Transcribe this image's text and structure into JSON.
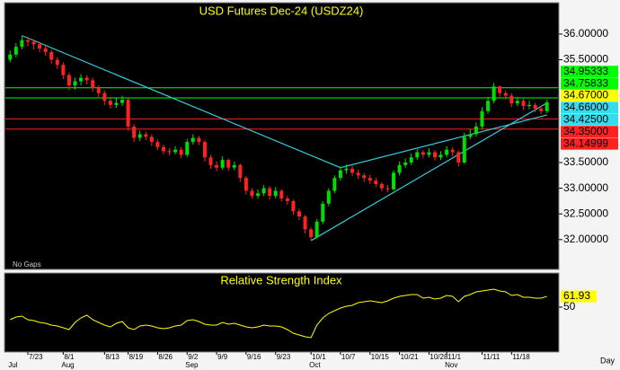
{
  "chart_data": [
    {
      "type": "candlestick",
      "title": "USD Futures Dec-24 (USDZ24)",
      "note": "No Gaps",
      "x_label": "Day",
      "categories": [
        null,
        null,
        null,
        "7/23",
        null,
        null,
        null,
        null,
        null,
        "8/1",
        null,
        null,
        null,
        null,
        null,
        null,
        "8/13",
        null,
        null,
        null,
        "8/19",
        null,
        null,
        null,
        null,
        "8/26",
        null,
        null,
        null,
        null,
        "9/2",
        null,
        null,
        null,
        null,
        "9/9",
        null,
        null,
        null,
        null,
        "9/16",
        null,
        null,
        null,
        null,
        "9/23",
        null,
        null,
        null,
        null,
        null,
        "10/1",
        null,
        null,
        null,
        null,
        "10/7",
        null,
        null,
        null,
        null,
        "10/15",
        null,
        null,
        null,
        null,
        "10/21",
        null,
        null,
        null,
        null,
        "10/28",
        null,
        null,
        "11/1",
        null,
        null,
        null,
        null,
        null,
        "11/11",
        null,
        null,
        null,
        null,
        "11/18",
        null,
        null,
        null,
        null,
        null,
        null
      ],
      "months": [
        "Jul",
        null,
        null,
        null,
        null,
        null,
        null,
        null,
        null,
        "Aug",
        null,
        null,
        null,
        null,
        null,
        null,
        null,
        null,
        null,
        null,
        null,
        null,
        null,
        null,
        null,
        null,
        null,
        null,
        null,
        null,
        "Sep",
        null,
        null,
        null,
        null,
        null,
        null,
        null,
        null,
        null,
        null,
        null,
        null,
        null,
        null,
        null,
        null,
        null,
        null,
        null,
        null,
        "Oct",
        null,
        null,
        null,
        null,
        null,
        null,
        null,
        null,
        null,
        null,
        null,
        null,
        null,
        null,
        null,
        null,
        null,
        null,
        null,
        null,
        null,
        null,
        "Nov",
        null,
        null,
        null,
        null,
        null,
        null,
        null,
        null,
        null,
        null,
        null,
        null,
        null,
        null,
        null,
        null,
        null
      ],
      "open": [
        35.5,
        35.6,
        35.75,
        35.88,
        35.85,
        35.8,
        35.72,
        35.65,
        35.5,
        35.4,
        35.2,
        35.0,
        35.08,
        35.15,
        35.1,
        34.95,
        34.85,
        34.7,
        34.62,
        34.66,
        34.72,
        34.2,
        33.98,
        34.05,
        34.0,
        33.9,
        33.8,
        33.72,
        33.7,
        33.75,
        33.65,
        33.9,
        33.98,
        33.9,
        33.6,
        33.45,
        33.4,
        33.55,
        33.4,
        33.45,
        33.2,
        32.95,
        32.85,
        32.9,
        33.0,
        32.85,
        32.95,
        32.8,
        32.75,
        32.55,
        32.45,
        32.2,
        32.05,
        32.35,
        32.7,
        32.95,
        33.2,
        33.35,
        33.38,
        33.3,
        33.25,
        33.2,
        33.15,
        33.08,
        33.0,
        32.98,
        33.3,
        33.45,
        33.5,
        33.6,
        33.7,
        33.65,
        33.7,
        33.6,
        33.65,
        33.75,
        33.7,
        33.5,
        34.0,
        34.05,
        34.2,
        34.5,
        34.7,
        34.98,
        34.85,
        34.8,
        34.65,
        34.7,
        34.6,
        34.62,
        34.55,
        34.5
      ],
      "high": [
        35.68,
        35.82,
        35.97,
        35.95,
        35.9,
        35.85,
        35.78,
        35.7,
        35.55,
        35.45,
        35.25,
        35.15,
        35.22,
        35.2,
        35.15,
        35.0,
        34.9,
        34.78,
        34.75,
        34.8,
        34.75,
        34.25,
        34.12,
        34.1,
        34.05,
        33.95,
        33.85,
        33.78,
        33.82,
        33.8,
        33.96,
        34.05,
        34.02,
        33.94,
        33.65,
        33.52,
        33.62,
        33.58,
        33.52,
        33.48,
        33.24,
        33.0,
        32.98,
        33.06,
        33.04,
        33.02,
        32.98,
        32.85,
        32.78,
        32.6,
        32.48,
        32.24,
        32.4,
        32.75,
        33.0,
        33.25,
        33.42,
        33.46,
        33.44,
        33.36,
        33.3,
        33.26,
        33.2,
        33.12,
        33.06,
        33.35,
        33.52,
        33.58,
        33.68,
        33.76,
        33.74,
        33.78,
        33.74,
        33.72,
        33.82,
        33.8,
        33.74,
        34.08,
        34.15,
        34.28,
        34.58,
        34.78,
        35.05,
        35.0,
        34.9,
        34.85,
        34.78,
        34.74,
        34.7,
        34.66,
        34.6,
        34.72
      ],
      "low": [
        35.45,
        35.55,
        35.7,
        35.76,
        35.7,
        35.65,
        35.58,
        35.42,
        35.32,
        35.12,
        34.9,
        34.92,
        35.0,
        35.02,
        34.88,
        34.78,
        34.62,
        34.55,
        34.56,
        34.6,
        34.12,
        33.9,
        33.92,
        33.93,
        33.82,
        33.74,
        33.66,
        33.64,
        33.66,
        33.58,
        33.6,
        33.85,
        33.84,
        33.52,
        33.38,
        33.33,
        33.36,
        33.34,
        33.35,
        33.12,
        32.88,
        32.8,
        32.8,
        32.85,
        32.78,
        32.8,
        32.74,
        32.68,
        32.48,
        32.38,
        32.12,
        31.98,
        32.02,
        32.3,
        32.65,
        32.9,
        33.15,
        33.28,
        33.24,
        33.18,
        33.12,
        33.08,
        33.02,
        32.94,
        32.92,
        32.95,
        33.25,
        33.4,
        33.45,
        33.55,
        33.58,
        33.6,
        33.54,
        33.55,
        33.6,
        33.62,
        33.42,
        33.48,
        33.95,
        34.0,
        34.15,
        34.45,
        34.65,
        34.78,
        34.72,
        34.58,
        34.6,
        34.52,
        34.54,
        34.48,
        34.44,
        34.46
      ],
      "close": [
        35.6,
        35.75,
        35.88,
        35.85,
        35.8,
        35.72,
        35.65,
        35.5,
        35.4,
        35.2,
        35.0,
        35.08,
        35.15,
        35.1,
        34.95,
        34.85,
        34.7,
        34.62,
        34.66,
        34.72,
        34.2,
        33.98,
        34.05,
        34.0,
        33.9,
        33.8,
        33.72,
        33.7,
        33.75,
        33.65,
        33.9,
        33.98,
        33.9,
        33.6,
        33.45,
        33.4,
        33.55,
        33.4,
        33.45,
        33.2,
        32.95,
        32.85,
        32.9,
        33.0,
        32.85,
        32.95,
        32.8,
        32.75,
        32.55,
        32.45,
        32.2,
        32.05,
        32.35,
        32.7,
        32.95,
        33.2,
        33.35,
        33.38,
        33.3,
        33.25,
        33.2,
        33.15,
        33.08,
        33.0,
        32.98,
        33.3,
        33.45,
        33.5,
        33.6,
        33.7,
        33.65,
        33.7,
        33.6,
        33.65,
        33.75,
        33.7,
        33.5,
        34.0,
        34.05,
        34.2,
        34.5,
        34.7,
        34.98,
        34.85,
        34.8,
        34.65,
        34.7,
        34.6,
        34.62,
        34.55,
        34.5,
        34.67
      ],
      "up_color": "#00dd00",
      "down_color": "#ff2222",
      "ylim": [
        31.42,
        36.61
      ],
      "yticks": [
        {
          "value": 32,
          "label": "32.00000"
        },
        {
          "value": 32.5,
          "label": "32.50000"
        },
        {
          "value": 33,
          "label": "33.00000"
        },
        {
          "value": 33.5,
          "label": "33.50000"
        },
        {
          "value": 35.5,
          "label": "35.50000"
        },
        {
          "value": 36,
          "label": "36.00000"
        }
      ],
      "trendline_color": "#33ccdd",
      "trendlines": [
        {
          "x": [
            2,
            56
          ],
          "y": [
            35.97,
            33.4
          ]
        },
        {
          "x": [
            51,
            91
          ],
          "y": [
            31.98,
            34.66
          ]
        },
        {
          "x": [
            56,
            91
          ],
          "y": [
            33.4,
            34.425
          ]
        }
      ],
      "markers": [
        {
          "value": 34.95333,
          "label": "34.95333",
          "color": "#00ff00",
          "line": true
        },
        {
          "value": 34.75833,
          "label": "34.75833",
          "color": "#00ff00",
          "line": true
        },
        {
          "value": 34.67,
          "label": "34.67000",
          "color": "#ffff00",
          "line": false
        },
        {
          "value": 34.66,
          "label": "34.66000",
          "color": "#33ddee",
          "line": false
        },
        {
          "value": 34.425,
          "label": "34.42500",
          "color": "#33ddee",
          "line": false
        },
        {
          "value": 34.35,
          "label": "34.35000",
          "color": "#ff2020",
          "line": true
        },
        {
          "value": 34.14999,
          "label": "34.14999",
          "color": "#ff2020",
          "line": true
        }
      ]
    },
    {
      "type": "line",
      "title": "Relative Strength Index",
      "color": "#ffff00",
      "label_color": "#ffff00",
      "values": [
        36,
        39,
        40,
        36,
        35,
        33,
        32,
        30,
        29,
        27,
        25,
        33,
        38,
        41,
        36,
        33,
        30,
        28,
        32,
        34,
        27,
        25,
        29,
        30,
        29,
        27,
        26,
        27,
        29,
        30,
        35,
        36,
        34,
        31,
        30,
        30,
        33,
        31,
        32,
        30,
        28,
        27,
        28,
        30,
        29,
        29,
        28,
        25,
        21,
        19,
        17,
        16,
        30,
        38,
        43,
        46,
        49,
        51,
        52,
        55,
        56,
        57,
        56,
        55,
        57,
        60,
        62,
        63,
        64,
        64,
        60,
        61,
        59,
        60,
        63,
        62,
        56,
        62,
        64,
        67,
        68,
        69,
        70,
        68,
        67,
        63,
        64,
        61,
        61,
        60,
        60,
        61.93
      ],
      "ylim": [
        0,
        88
      ],
      "yticks": [
        50
      ]
    }
  ]
}
